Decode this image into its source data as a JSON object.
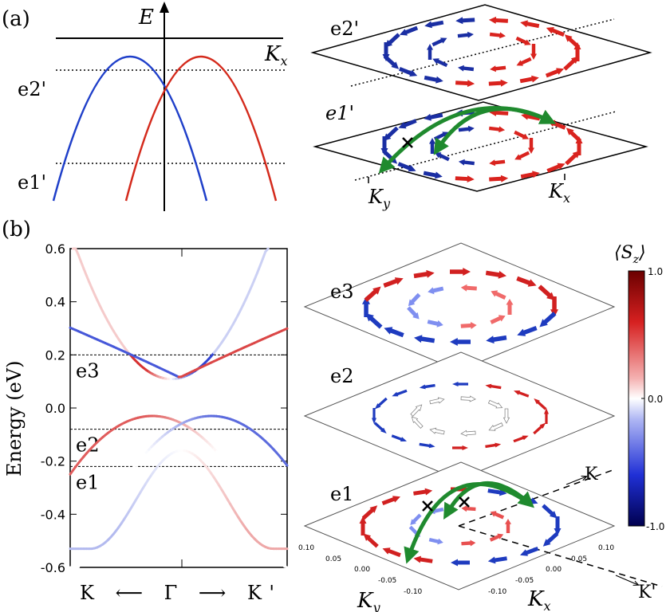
{
  "panel_a": {
    "label": "(a)",
    "y_axis_label": "E",
    "x_axis_label": "K",
    "x_axis_sub": "x",
    "levels": [
      {
        "name": "e2'",
        "energy": "upper"
      },
      {
        "name": "e1'",
        "energy": "lower"
      }
    ],
    "planes": [
      {
        "name": "e2'"
      },
      {
        "name": "e1'",
        "axis_labels": {
          "ky": "K",
          "ky_sub": "y",
          "kx": "K",
          "kx_sub": "x"
        }
      }
    ],
    "colors": {
      "band_left": "#1f3fc9",
      "band_right": "#d42a1c",
      "arrow_red": "#d9231e",
      "arrow_blue": "#1a2ea3",
      "scatter": "#1f8a2e"
    }
  },
  "panel_b": {
    "label": "(b)",
    "y_axis_label": "Energy (eV)",
    "x_axis_label": "K ⟵ Γ ⟶ K'",
    "y_ticks": [
      "0.6",
      "0.4",
      "0.2",
      "0.0",
      "-0.2",
      "-0.4",
      "-0.6"
    ],
    "levels": [
      {
        "name": "e3",
        "energy": 0.2
      },
      {
        "name": "e2",
        "energy": -0.08
      },
      {
        "name": "e1",
        "energy": -0.22
      }
    ],
    "planes": [
      {
        "name": "e3"
      },
      {
        "name": "e2"
      },
      {
        "name": "e1",
        "k_dirs": [
          "K",
          "K'"
        ],
        "ky_ticks": [
          "0.10",
          "0.05",
          "0.00",
          "-0.05",
          "-0.10"
        ],
        "kx_ticks": [
          "-0.10",
          "-0.05",
          "0.00",
          "0.05",
          "0.10"
        ],
        "axis_labels": {
          "ky": "K",
          "ky_sub": "y",
          "kx": "K",
          "kx_sub": "x"
        }
      }
    ],
    "colorbar": {
      "title": "⟨S",
      "title_sub": "z",
      "title_end": "⟩",
      "ticks": [
        "1.0",
        "0.0",
        "-1.0"
      ],
      "colors": {
        "high": "#7a0000",
        "mid": "#ffffff",
        "low": "#00005a"
      }
    }
  }
}
